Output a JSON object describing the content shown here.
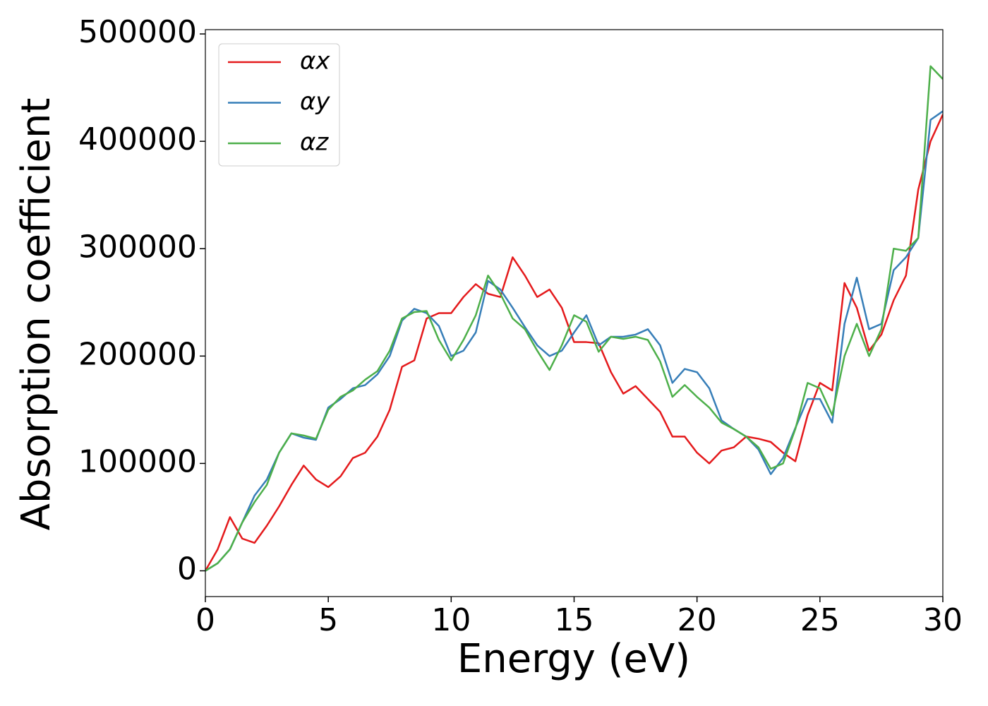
{
  "chart_data": {
    "type": "line",
    "xlabel": "Energy (eV)",
    "ylabel": "Absorption coefficient",
    "x": [
      0,
      0.5,
      1,
      1.5,
      2,
      2.5,
      3,
      3.5,
      4,
      4.5,
      5,
      5.5,
      6,
      6.5,
      7,
      7.5,
      8,
      8.5,
      9,
      9.5,
      10,
      10.5,
      11,
      11.5,
      12,
      12.5,
      13,
      13.5,
      14,
      14.5,
      15,
      15.5,
      16,
      16.5,
      17,
      17.5,
      18,
      18.5,
      19,
      19.5,
      20,
      20.5,
      21,
      21.5,
      22,
      22.5,
      23,
      23.5,
      24,
      24.5,
      25,
      25.5,
      26,
      26.5,
      27,
      27.5,
      28,
      28.5,
      29,
      29.5,
      30
    ],
    "series": [
      {
        "name": "αx",
        "color": "#e41a1c",
        "values": [
          0,
          20000,
          50000,
          30000,
          26000,
          42000,
          60000,
          80000,
          98000,
          85000,
          78000,
          88000,
          105000,
          110000,
          125000,
          150000,
          190000,
          196000,
          235000,
          240000,
          240000,
          255000,
          267000,
          258000,
          255000,
          292000,
          275000,
          255000,
          262000,
          245000,
          213000,
          213000,
          212000,
          185000,
          165000,
          172000,
          160000,
          148000,
          125000,
          125000,
          110000,
          100000,
          112000,
          115000,
          125000,
          123000,
          120000,
          110000,
          102000,
          145000,
          175000,
          168000,
          268000,
          245000,
          205000,
          220000,
          252000,
          275000,
          355000,
          400000,
          425000
        ]
      },
      {
        "name": "αy",
        "color": "#377eb8",
        "values": [
          0,
          7000,
          20000,
          45000,
          70000,
          85000,
          110000,
          128000,
          124000,
          122000,
          152000,
          160000,
          170000,
          173000,
          183000,
          200000,
          233000,
          244000,
          240000,
          228000,
          200000,
          205000,
          222000,
          270000,
          262000,
          245000,
          227000,
          210000,
          200000,
          205000,
          222000,
          238000,
          210000,
          218000,
          218000,
          220000,
          225000,
          210000,
          175000,
          188000,
          185000,
          170000,
          140000,
          132000,
          125000,
          113000,
          90000,
          105000,
          133000,
          160000,
          160000,
          138000,
          230000,
          273000,
          225000,
          230000,
          280000,
          292000,
          310000,
          420000,
          428000
        ]
      },
      {
        "name": "αz",
        "color": "#4daf4a",
        "values": [
          0,
          7000,
          20000,
          45000,
          64000,
          80000,
          110000,
          128000,
          126000,
          123000,
          150000,
          162000,
          168000,
          178000,
          186000,
          205000,
          235000,
          241000,
          242000,
          215000,
          196000,
          215000,
          238000,
          275000,
          258000,
          235000,
          225000,
          205000,
          187000,
          210000,
          238000,
          232000,
          204000,
          218000,
          216000,
          218000,
          215000,
          195000,
          162000,
          173000,
          162000,
          152000,
          138000,
          132000,
          125000,
          115000,
          95000,
          100000,
          132000,
          175000,
          170000,
          145000,
          200000,
          230000,
          200000,
          225000,
          300000,
          298000,
          310000,
          470000,
          458000
        ]
      }
    ],
    "xlim": [
      0,
      30
    ],
    "xticks": [
      0,
      5,
      10,
      15,
      20,
      25,
      30
    ],
    "ylim": [
      -24000,
      504000
    ],
    "yticks": [
      0,
      100000,
      200000,
      300000,
      400000,
      500000
    ],
    "grid": false,
    "legend": "upper left"
  }
}
